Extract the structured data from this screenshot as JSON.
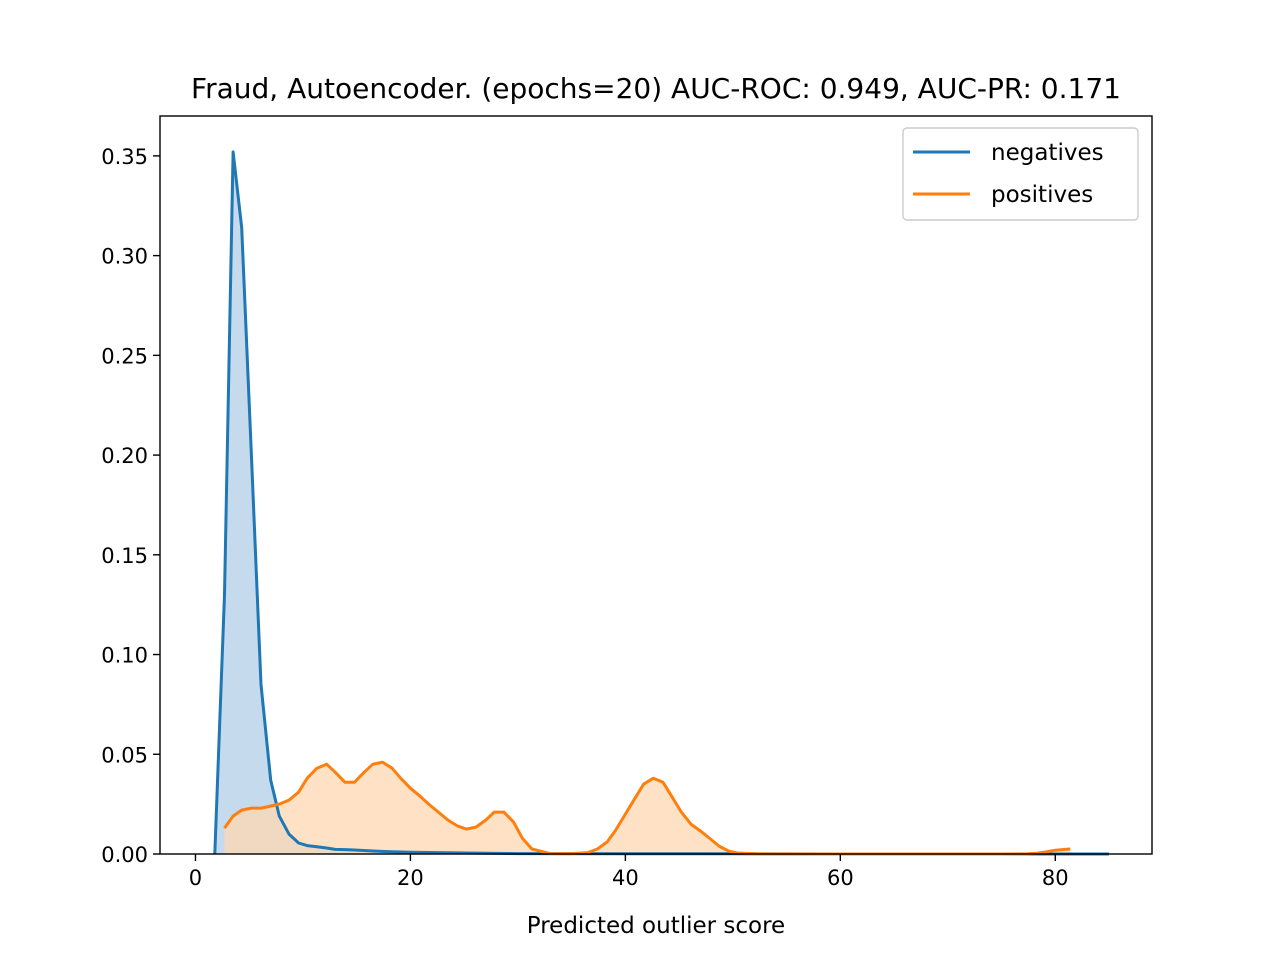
{
  "chart_data": {
    "type": "area",
    "title": "Fraud, Autoencoder. (epochs=20) AUC-ROC: 0.949, AUC-PR: 0.171",
    "xlabel": "Predicted outlier score",
    "ylabel": "",
    "xlim": [
      -3.3,
      89.0
    ],
    "ylim": [
      0,
      0.37
    ],
    "xticks": [
      0,
      20,
      40,
      60,
      80
    ],
    "xtick_labels": [
      "0",
      "20",
      "40",
      "60",
      "80"
    ],
    "yticks": [
      0,
      0.05,
      0.1,
      0.15,
      0.2,
      0.25,
      0.3,
      0.35
    ],
    "ytick_labels": [
      "0.00",
      "0.05",
      "0.10",
      "0.15",
      "0.20",
      "0.25",
      "0.30",
      "0.35"
    ],
    "grid": false,
    "legend": "top-right",
    "series": [
      {
        "name": "negatives",
        "color": "#1f77b4",
        "fill": "#c5daed",
        "x": [
          1.8,
          2.7,
          3.5,
          4.3,
          5.2,
          6.1,
          7.0,
          7.8,
          8.7,
          9.6,
          10.4,
          11.3,
          12.2,
          13.0,
          13.9,
          14.8,
          16.5,
          18.3,
          20.0,
          22.6,
          25.2,
          30.0,
          40.0,
          50.0,
          60.0,
          70.0,
          80.0,
          85.0
        ],
        "y": [
          0.0,
          0.13,
          0.352,
          0.314,
          0.2,
          0.085,
          0.037,
          0.019,
          0.01,
          0.0055,
          0.0042,
          0.0036,
          0.003,
          0.0023,
          0.0022,
          0.002,
          0.0015,
          0.0011,
          0.0009,
          0.0007,
          0.0005,
          0.0002,
          0.0001,
          0.0001,
          0.0,
          0.0,
          0.0,
          0.0
        ]
      },
      {
        "name": "positives",
        "color": "#ff7f0e",
        "fill": "#ffd8b2",
        "x": [
          2.7,
          3.5,
          4.3,
          5.2,
          6.1,
          7.0,
          7.8,
          8.7,
          9.6,
          10.4,
          11.3,
          12.2,
          13.0,
          13.9,
          14.8,
          15.7,
          16.5,
          17.4,
          18.3,
          19.1,
          20.0,
          20.9,
          21.7,
          22.6,
          23.5,
          24.4,
          25.2,
          26.1,
          27.0,
          27.8,
          28.7,
          29.6,
          30.4,
          31.3,
          33.0,
          34.8,
          36.5,
          37.4,
          38.3,
          39.1,
          40.0,
          40.9,
          41.7,
          42.6,
          43.5,
          44.3,
          45.2,
          46.1,
          47.0,
          47.8,
          48.7,
          49.6,
          50.4,
          52.2,
          60.0,
          70.0,
          75.0,
          77.4,
          78.3,
          79.1,
          80.0,
          80.9,
          81.4
        ],
        "y": [
          0.013,
          0.019,
          0.022,
          0.023,
          0.023,
          0.024,
          0.025,
          0.027,
          0.031,
          0.038,
          0.043,
          0.045,
          0.041,
          0.036,
          0.036,
          0.041,
          0.045,
          0.046,
          0.043,
          0.038,
          0.033,
          0.029,
          0.025,
          0.021,
          0.017,
          0.014,
          0.0125,
          0.0135,
          0.017,
          0.021,
          0.021,
          0.016,
          0.008,
          0.0025,
          0.0002,
          0.0001,
          0.0007,
          0.0025,
          0.006,
          0.012,
          0.02,
          0.028,
          0.035,
          0.038,
          0.036,
          0.029,
          0.021,
          0.015,
          0.0115,
          0.008,
          0.004,
          0.0015,
          0.0005,
          0.0001,
          0.0,
          0.0,
          0.0,
          0.0001,
          0.0004,
          0.001,
          0.0019,
          0.0023,
          0.0025
        ]
      }
    ]
  }
}
